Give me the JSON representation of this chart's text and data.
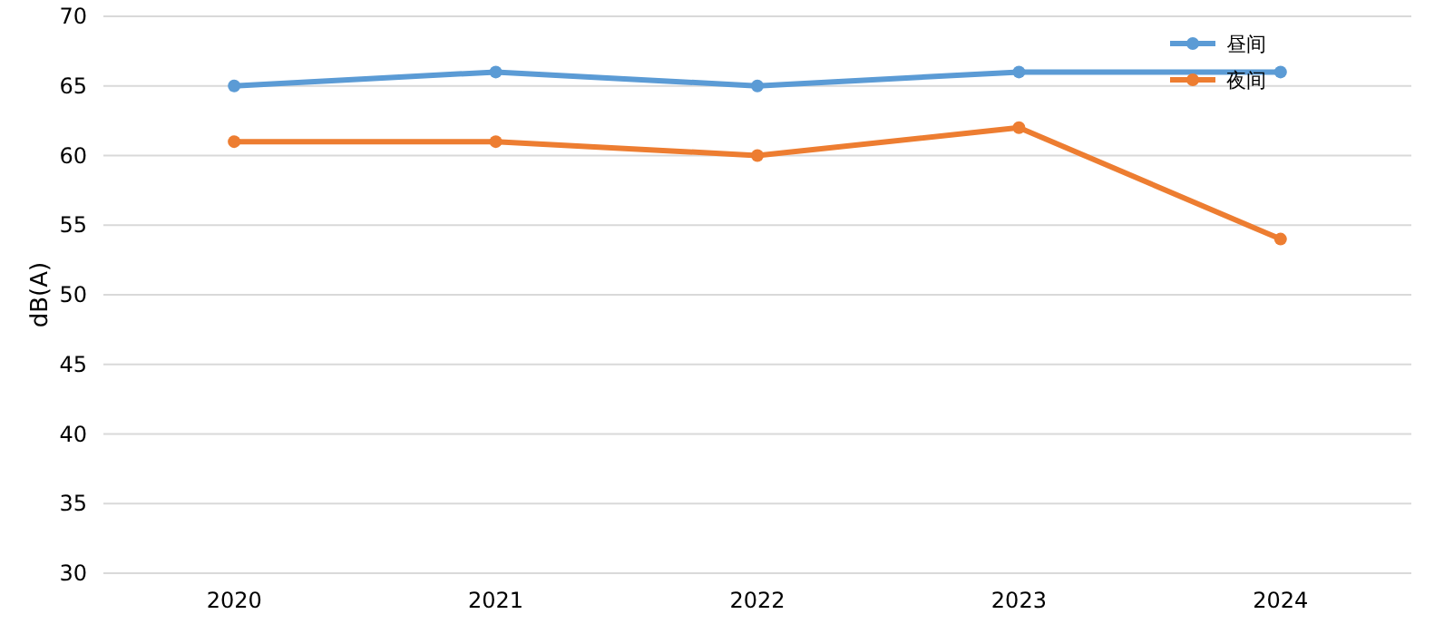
{
  "chart_data": {
    "type": "line",
    "ylabel": "dB(A)",
    "categories": [
      "2020",
      "2021",
      "2022",
      "2023",
      "2024"
    ],
    "series": [
      {
        "name": "昼间",
        "color": "#5b9bd5",
        "values": [
          65,
          66,
          65,
          66,
          66
        ]
      },
      {
        "name": "夜间",
        "color": "#ed7d31",
        "values": [
          61,
          61,
          60,
          62,
          54
        ]
      }
    ],
    "ylim": [
      30,
      70
    ],
    "yticks": [
      30,
      35,
      40,
      45,
      50,
      55,
      60,
      65,
      70
    ],
    "grid": "y",
    "legend": "top right",
    "marker": "circle",
    "line_style": "solid"
  }
}
